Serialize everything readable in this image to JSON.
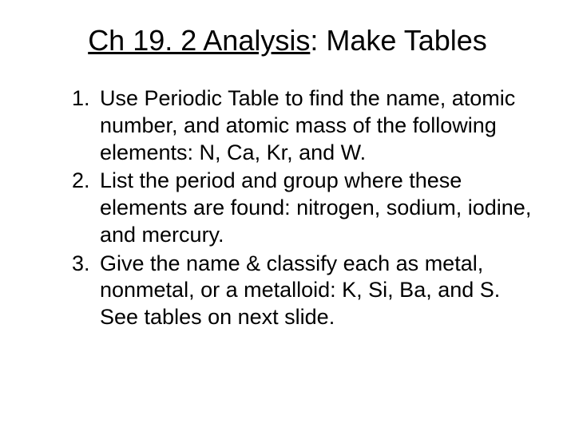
{
  "title": {
    "underlined_part": "Ch 19. 2 Analysis",
    "rest": ": Make Tables"
  },
  "items": [
    "Use Periodic Table to find the name, atomic number, and atomic mass of the following elements: N, Ca, Kr, and W.",
    "List the period and group where these elements are found: nitrogen, sodium, iodine, and mercury.",
    "Give the name & classify each as metal, nonmetal, or a metalloid: K, Si, Ba, and S. See tables on next slide."
  ],
  "styling": {
    "background_color": "#ffffff",
    "text_color": "#000000",
    "title_fontsize": 36,
    "body_fontsize": 27,
    "font_family": "Arial"
  }
}
